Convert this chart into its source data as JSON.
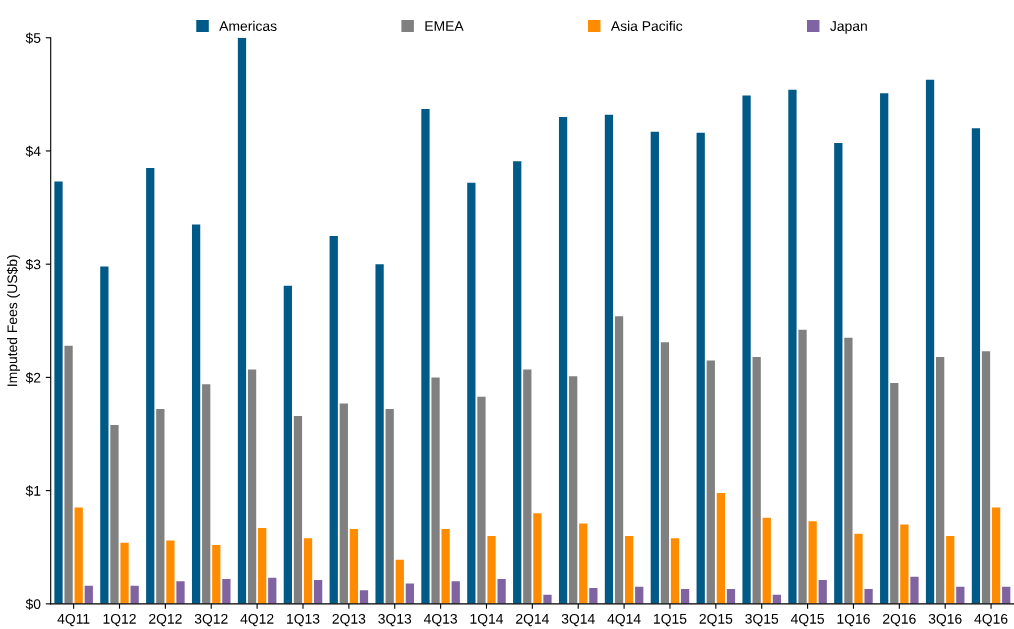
{
  "chart_data": {
    "type": "bar",
    "ylabel": "Imputed Fees (US$b)",
    "categories": [
      "4Q11",
      "1Q12",
      "2Q12",
      "3Q12",
      "4Q12",
      "1Q13",
      "2Q13",
      "3Q13",
      "4Q13",
      "1Q14",
      "2Q14",
      "3Q14",
      "4Q14",
      "1Q15",
      "2Q15",
      "3Q15",
      "4Q15",
      "1Q16",
      "2Q16",
      "3Q16",
      "4Q16"
    ],
    "series": [
      {
        "name": "Americas",
        "color": "#005a87",
        "values": [
          3.73,
          2.98,
          3.85,
          3.35,
          5.0,
          2.81,
          3.25,
          3.0,
          4.37,
          3.72,
          3.91,
          4.3,
          4.32,
          4.17,
          4.16,
          4.49,
          4.54,
          4.07,
          4.51,
          4.63,
          4.2
        ]
      },
      {
        "name": "EMEA",
        "color": "#808080",
        "values": [
          2.28,
          1.58,
          1.72,
          1.94,
          2.07,
          1.66,
          1.77,
          1.72,
          2.0,
          1.83,
          2.07,
          2.01,
          2.54,
          2.31,
          2.15,
          2.18,
          2.42,
          2.35,
          1.95,
          2.18,
          2.23
        ]
      },
      {
        "name": "Asia Pacific",
        "color": "#ff8c00",
        "values": [
          0.85,
          0.54,
          0.56,
          0.52,
          0.67,
          0.58,
          0.66,
          0.39,
          0.66,
          0.6,
          0.8,
          0.71,
          0.6,
          0.58,
          0.98,
          0.76,
          0.73,
          0.62,
          0.7,
          0.6,
          0.85
        ]
      },
      {
        "name": "Japan",
        "color": "#8064a2",
        "values": [
          0.16,
          0.16,
          0.2,
          0.22,
          0.23,
          0.21,
          0.12,
          0.18,
          0.2,
          0.22,
          0.08,
          0.14,
          0.15,
          0.13,
          0.13,
          0.08,
          0.21,
          0.13,
          0.24,
          0.15,
          0.15
        ]
      }
    ],
    "ylim": [
      0,
      5
    ],
    "yticks": [
      {
        "value": 0,
        "label": "$0"
      },
      {
        "value": 1,
        "label": "$1"
      },
      {
        "value": 2,
        "label": "$2"
      },
      {
        "value": 3,
        "label": "$3"
      },
      {
        "value": 4,
        "label": "$4"
      },
      {
        "value": 5,
        "label": "$5"
      }
    ],
    "grid": false,
    "legend": "top"
  }
}
